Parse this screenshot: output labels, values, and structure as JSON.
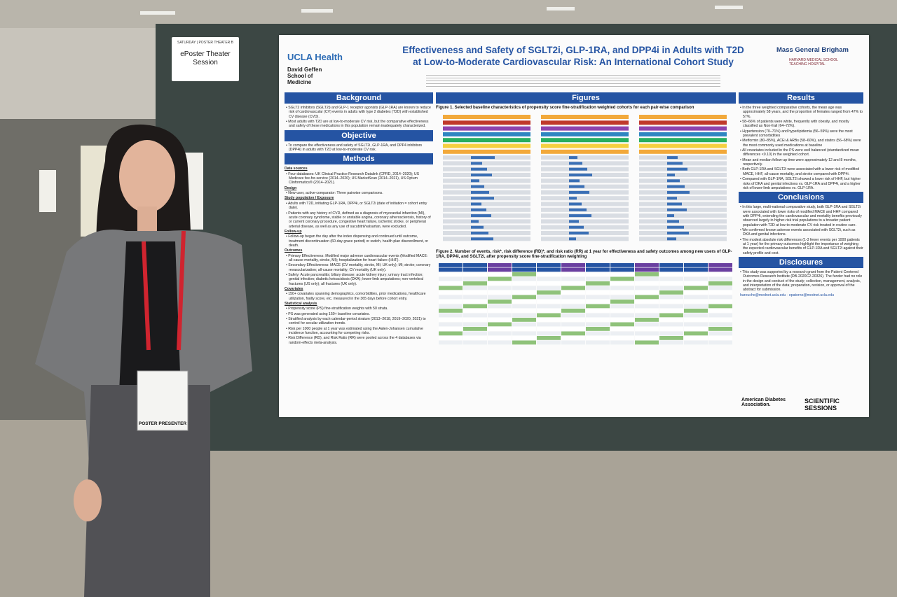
{
  "sign": {
    "day": "SATURDAY",
    "room": "POSTER THEATER B",
    "title": "ePoster Theater Session"
  },
  "badge": {
    "role": "POSTER PRESENTER"
  },
  "poster": {
    "logo_left": {
      "brand": "UCLA Health",
      "school": "David Geffen School of Medicine"
    },
    "logo_right": {
      "brand": "Mass General Brigham",
      "sub": "HARVARD MEDICAL SCHOOL TEACHING HOSPITAL"
    },
    "title": [
      "Effectiveness and Safety of SGLT2i, GLP-1RA, and DPP4i in Adults with T2D",
      "at Low-to-Moderate Cardiovascular Risk: An International Cohort Study"
    ],
    "background": {
      "heading": "Background",
      "bullets": [
        "SGLT2 inhibitors (SGLT2i) and GLP-1 receptor agonists (GLP-1RA) are known to reduce risk of cardiovascular (CV) events in adults with type 2 diabetes (T2D) with established CV disease (CVD).",
        "Most adults with T2D are at low-to-moderate CV risk, but the comparative effectiveness and safety of these medications in this population remain inadequately characterized."
      ]
    },
    "objective": {
      "heading": "Objective",
      "bullets": [
        "To compare the effectiveness and safety of SGLT2i, GLP-1RA, and DPP4 inhibitors (DPP4i) in adults with T2D at low-to-moderate CV risk."
      ]
    },
    "methods": {
      "heading": "Methods",
      "bullets": [
        "Data sources",
        "Four databases: UK Clinical Practice Research Datalink (CPRD, 2014–2020); US Medicare fee-for-service (2014–2020); US MarketScan (2014–2021), US Optum Clinformatics® (2014–2021).",
        "Design",
        "New-user, active-comparator: Three pairwise comparisons.",
        "Study population / Exposure",
        "Adults with T2D, initiating GLP-1RA, DPP4i, or SGLT2i (date of initiation = cohort entry date).",
        "Patients with any history of CVD, defined as a diagnosis of myocardial infarction (MI), acute coronary syndrome, stable or unstable angina, coronary atherosclerosis, history of or current coronary procedure, congestive heart failure, ischemic stroke, or peripheral arterial disease, as well as any use of sacubitril/valsartan, were excluded.",
        "Follow-up",
        "Follow-up began the day after the index dispensing and continued until outcome, treatment discontinuation (60-day grace period) or switch, health plan disenrollment, or death.",
        "Outcomes",
        "Primary Effectiveness: Modified major adverse cardiovascular events (Modified MACE: all-cause mortality, stroke, MI); hospitalization for heart failure (HHF).",
        "Secondary Effectiveness: MACE (CV mortality, stroke, MI; UK only); MI; stroke; coronary revascularization; all-cause mortality; CV mortality (UK only).",
        "Safety: Acute pancreatitis; biliary disease; acute kidney injury; urinary tract infection; genital infection; diabetic ketoacidosis (DKA); lower-limb amputations; non-vertebral fractures (US only); all fractures (UK only).",
        "Covariates",
        "150+ covariates spanning demographics, comorbidities, prior medications, healthcare utilization, frailty score, etc. measured in the 365 days before cohort entry.",
        "Statistical analysis",
        "Propensity score (PS) fine-stratification weights with 50 strata.",
        "PS was generated using 150+ baseline covariates.",
        "Stratified analysis by each calendar-period stratum (2013–2018, 2019–2020, 2021) to control for secular utilization trends.",
        "Risk per 1000 people at 1 year was estimated using the Aalen-Johansen cumulative incidence function, accounting for competing risks.",
        "Risk Difference (RD), and Risk Ratio (RR) were pooled across the 4 databases via random-effects meta-analysis."
      ]
    },
    "figures": {
      "heading": "Figures",
      "figure1": "Figure 1. Selected baseline characteristics of propensity score fine-stratification weighted cohorts for each pair-wise comparison",
      "figure2": "Figure 2. Number of events, risk*, risk difference (RD)*, and risk ratio (RR) at 1 year for effectiveness and safety outcomes among new users of GLP-1RA, DPP4i, and SGLT2i, after propensity score fine-stratification weighting"
    },
    "results": {
      "heading": "Results",
      "bullets": [
        "In the three weighted comparative cohorts, the mean age was approximately 58 years, and the proportion of females ranged from 47% to 57%.",
        "58–66% of patients were white, frequently with obesity, and mostly classified as Non-frail (64–72%).",
        "Hypertension (70–71%) and hyperlipidemia (56–59%) were the most prevalent comorbidities",
        "Metformin (80–85%), ACEi & ARBs (58–60%), and statins (56–68%) were the most commonly used medications at baseline",
        "All covariates included in the PS were well balanced (standardized mean differences <0.10) in the weighted cohort.",
        "Mean and median follow-up time were approximately 12 and 8 months, respectively.",
        "Both GLP-1RA and SGLT2i were associated with a lower risk of modified MACE, HHF, all-cause mortality, and stroke compared with DPP4i.",
        "Compared with GLP-1RA, SGLT2i showed a lower risk of HHF, but higher risks of DKA and genital infections vs. GLP-1RA and DPP4i, and a higher risk of lower-limb amputations vs. GLP-1RA."
      ]
    },
    "conclusions": {
      "heading": "Conclusions",
      "bullets": [
        "In this large, multi-national comparative study, both GLP-1RA and SGLT2i were associated with lower risks of modified MACE and HHF compared with DPP4i, extending the cardiovascular and mortality benefits previously observed largely in higher-risk trial populations to a broader patient population with T2D at low-to-moderate CV risk treated in routine care.",
        "We confirmed known adverse events associated with SGLT2i, such as DKA and genital infections.",
        "The modest absolute risk differences (1-3 fewer events per 1000 patients at 1 year) for the primary outcomes highlight the importance of weighing the expected cardiovascular benefits of GLP-1RA and SGLT2i against their safety profile and cost."
      ]
    },
    "disclosures": {
      "heading": "Disclosures",
      "bullets": [
        "This study was supported by a research grant from the Patient Centered Outcomes Research Institute (DB-2020C2-20326). The funder had no role in the design and conduct of the study; collection, management, analysis, and interpretation of the data; preparation, revision, or approval of the abstract for submission."
      ],
      "emails": "hareucho@mednet.ucla.edu · epatorno@mednet.ucla.edu"
    },
    "sponsor": {
      "ada": "American Diabetes Association.",
      "sessions": "SCIENTIFIC SESSIONS"
    }
  }
}
